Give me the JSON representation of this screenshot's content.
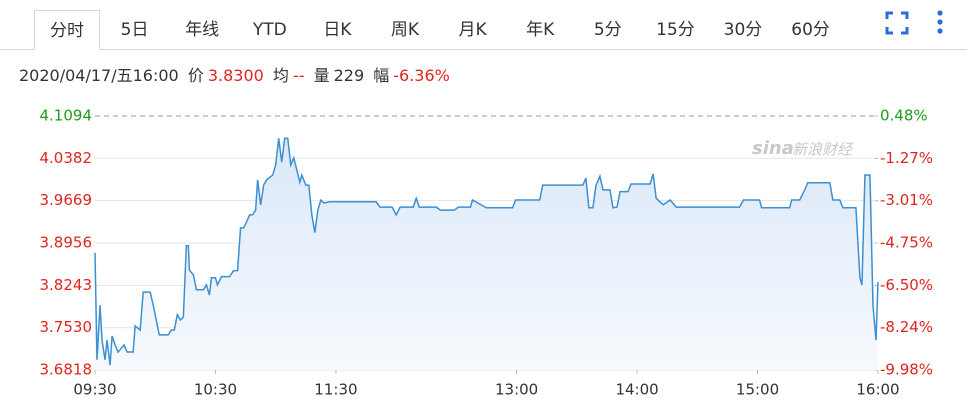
{
  "tabs": {
    "items": [
      "分时",
      "5日",
      "年线",
      "YTD",
      "日K",
      "周K",
      "月K",
      "年K",
      "5分",
      "15分",
      "30分",
      "60分"
    ],
    "active": 0
  },
  "info": {
    "datetime": "2020/04/17/五16:00",
    "price_label": "价",
    "price": "3.8300",
    "avg_label": "均",
    "avg": "--",
    "volume_label": "量",
    "volume": "229",
    "change_label": "幅",
    "change": "-6.36%"
  },
  "chart_data": {
    "type": "line",
    "watermark_logo": "sina",
    "watermark_text": "新浪财经",
    "color": "#3c8fd0",
    "fill": "#e6f0fb",
    "up_color": "#1d9e1d",
    "down_color": "#e0251f",
    "grid": true,
    "xlim": [
      570,
      960
    ],
    "xticks": [
      {
        "value": 570,
        "label": "09:30"
      },
      {
        "value": 630,
        "label": "10:30"
      },
      {
        "value": 690,
        "label": "11:30"
      },
      {
        "value": 780,
        "label": "13:00"
      },
      {
        "value": 840,
        "label": "14:00"
      },
      {
        "value": 900,
        "label": "15:00"
      },
      {
        "value": 960,
        "label": "16:00"
      }
    ],
    "ylim": [
      3.6818,
      4.1094
    ],
    "yticks": [
      4.1094,
      4.0382,
      3.9669,
      3.8956,
      3.8243,
      {
        "value": 3.753,
        "label": "3.7530"
      },
      3.6818
    ],
    "y2lim": [
      -9.98,
      0.48
    ],
    "y2ticks": [
      {
        "value": 0.48,
        "label": "0.48%"
      },
      {
        "value": -1.27,
        "label": "-1.27%"
      },
      {
        "value": -3.01,
        "label": "-3.01%"
      },
      {
        "value": -4.75,
        "label": "-4.75%"
      },
      {
        "value": -6.5,
        "label": "-6.50%"
      },
      {
        "value": -8.24,
        "label": "-8.24%"
      },
      {
        "value": -9.98,
        "label": "-9.98%"
      }
    ],
    "x": [
      570,
      571,
      572.5,
      573.5,
      575,
      576,
      577.5,
      578.5,
      580,
      581.5,
      584.5,
      586,
      589,
      590,
      592.5,
      594,
      597.5,
      599,
      602,
      606.5,
      608,
      609.5,
      611,
      612.5,
      614,
      615.5,
      616.5,
      617,
      619,
      620.5,
      624,
      625.5,
      627,
      628,
      630,
      631,
      633,
      637,
      639,
      641,
      642.5,
      644,
      645.5,
      647,
      648.5,
      650,
      651,
      652.5,
      654,
      655.5,
      658.5,
      660,
      661.5,
      663,
      664.5,
      666,
      667.5,
      669,
      670.5,
      672,
      673,
      675,
      676.5,
      678,
      679.5,
      681,
      682.5,
      684,
      687,
      710,
      712,
      718,
      720,
      722,
      728.5,
      730,
      731.5,
      740,
      742,
      749,
      751,
      757,
      758,
      765,
      778,
      779.5,
      791.5,
      793,
      813,
      814.5,
      816,
      818,
      819.5,
      821.5,
      823,
      826.5,
      828,
      830,
      831.5,
      835.5,
      837,
      846.5,
      848,
      849.5,
      853,
      856.5,
      859.5,
      891,
      893,
      901,
      902,
      916,
      917,
      921,
      923.5,
      925,
      936,
      937.5,
      941,
      942.5,
      949,
      951,
      952,
      953.5,
      956,
      957.5,
      959,
      960
    ],
    "values": [
      3.879,
      3.699,
      3.791,
      3.732,
      3.699,
      3.732,
      3.69,
      3.739,
      3.724,
      3.712,
      3.724,
      3.712,
      3.712,
      3.756,
      3.749,
      3.813,
      3.813,
      3.791,
      3.741,
      3.741,
      3.749,
      3.749,
      3.775,
      3.766,
      3.771,
      3.891,
      3.891,
      3.85,
      3.842,
      3.817,
      3.817,
      3.825,
      3.808,
      3.837,
      3.837,
      3.825,
      3.839,
      3.839,
      3.849,
      3.849,
      3.921,
      3.921,
      3.931,
      3.943,
      3.943,
      3.951,
      4.002,
      3.96,
      3.993,
      4.002,
      4.01,
      4.027,
      4.072,
      4.032,
      4.072,
      4.072,
      4.027,
      4.039,
      4.019,
      3.998,
      4.01,
      3.993,
      3.993,
      3.943,
      3.913,
      3.951,
      3.968,
      3.963,
      3.965,
      3.965,
      3.956,
      3.956,
      3.943,
      3.956,
      3.956,
      3.971,
      3.956,
      3.956,
      3.951,
      3.951,
      3.956,
      3.956,
      3.968,
      3.955,
      3.955,
      3.968,
      3.968,
      3.993,
      3.993,
      4.005,
      3.955,
      3.955,
      3.992,
      4.008,
      3.985,
      3.985,
      3.955,
      3.956,
      3.982,
      3.982,
      3.995,
      3.995,
      4.012,
      3.971,
      3.96,
      3.968,
      3.956,
      3.956,
      3.968,
      3.968,
      3.955,
      3.955,
      3.968,
      3.968,
      3.985,
      3.997,
      3.997,
      3.968,
      3.968,
      3.955,
      3.955,
      3.837,
      3.825,
      4.01,
      4.01,
      3.791,
      3.732,
      3.83
    ]
  }
}
